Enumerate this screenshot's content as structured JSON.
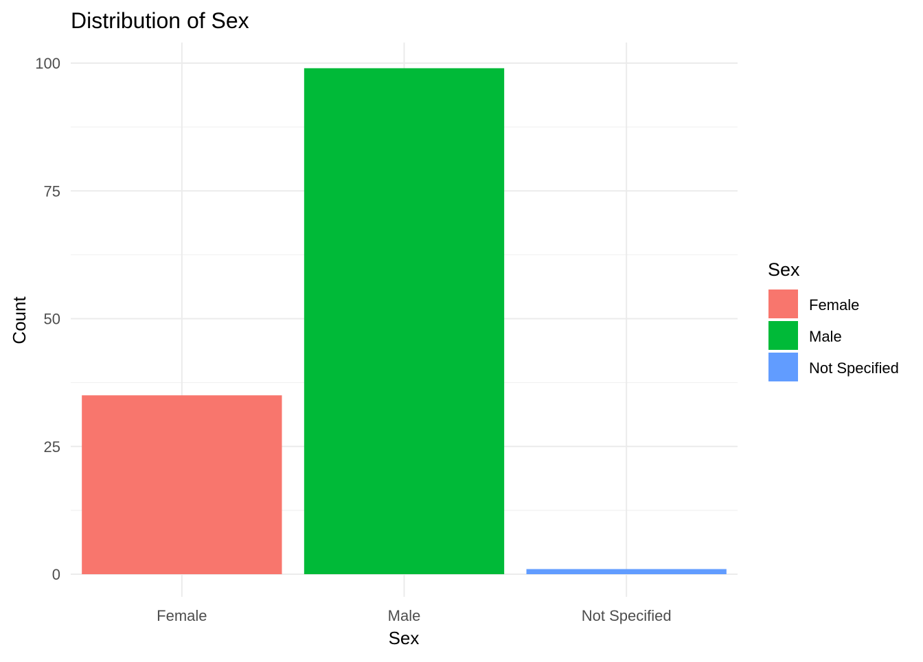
{
  "chart_data": {
    "type": "bar",
    "title": "Distribution of Sex",
    "xlabel": "Sex",
    "ylabel": "Count",
    "categories": [
      "Female",
      "Male",
      "Not Specified"
    ],
    "values": [
      35,
      99,
      1
    ],
    "colors": [
      "#F8766D",
      "#00BA38",
      "#619CFF"
    ],
    "ylim": [
      0,
      103
    ],
    "y_ticks": [
      0,
      25,
      50,
      75,
      100
    ],
    "y_tick_labels": [
      "0",
      "25",
      "50",
      "75",
      "100"
    ],
    "y_minor_ticks": [
      12.5,
      37.5,
      62.5,
      87.5
    ],
    "grid": true,
    "legend": {
      "title": "Sex",
      "position": "right",
      "entries": [
        "Female",
        "Male",
        "Not Specified"
      ]
    }
  }
}
